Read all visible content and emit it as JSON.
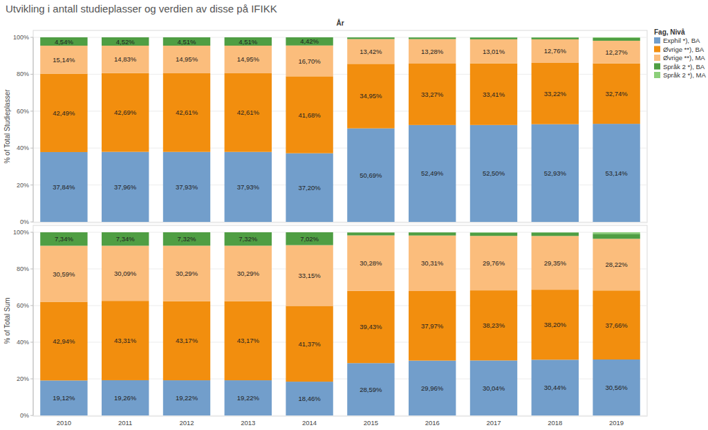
{
  "chart_data": {
    "type": "bar",
    "title": "Utvikling i antall studieplasser og verdien av disse på IFIKK",
    "xlabel": "År",
    "stacked": true,
    "data_labels": true,
    "grid": true,
    "legend": "right",
    "legend_title": "Fag, Nivå",
    "categories": [
      "2010",
      "2011",
      "2012",
      "2013",
      "2014",
      "2015",
      "2016",
      "2017",
      "2018",
      "2019"
    ],
    "series": [
      {
        "name": "Exphil *), BA",
        "color": "#729ecb"
      },
      {
        "name": "Øvrige **), BA",
        "color": "#f28e0e"
      },
      {
        "name": "Øvrige **), MA",
        "color": "#fbbd7c"
      },
      {
        "name": "Språk 2 *), BA",
        "color": "#4f9e43"
      },
      {
        "name": "Språk 2 *), MA",
        "color": "#8ccf7a"
      }
    ],
    "panels": [
      {
        "ylabel": "% of Total Studieplasser",
        "ylim": [
          0,
          100
        ],
        "yticks": [
          {
            "value": 0,
            "label": "0%"
          },
          {
            "value": 20,
            "label": "20%"
          },
          {
            "value": 40,
            "label": "40%"
          },
          {
            "value": 60,
            "label": "60%"
          },
          {
            "value": 80,
            "label": "80%"
          },
          {
            "value": 100,
            "label": "100%"
          }
        ],
        "values": [
          [
            37.84,
            37.96,
            37.93,
            37.93,
            37.2,
            50.69,
            52.49,
            52.5,
            52.93,
            53.14
          ],
          [
            42.49,
            42.69,
            42.61,
            42.61,
            41.68,
            34.95,
            33.27,
            33.41,
            33.22,
            32.74
          ],
          [
            15.14,
            14.83,
            14.95,
            14.95,
            16.7,
            13.42,
            13.28,
            13.01,
            12.76,
            12.27
          ],
          [
            4.54,
            4.52,
            4.51,
            4.51,
            4.42,
            0.9,
            0.9,
            1.0,
            1.0,
            1.49
          ],
          [
            null,
            null,
            null,
            null,
            null,
            0.04,
            0.06,
            0.08,
            0.09,
            0.36
          ]
        ],
        "value_labels": [
          [
            "37,84%",
            "37,96%",
            "37,93%",
            "37,93%",
            "37,20%",
            "50,69%",
            "52,49%",
            "52,50%",
            "52,93%",
            "53,14%"
          ],
          [
            "42,49%",
            "42,69%",
            "42,61%",
            "42,61%",
            "41,68%",
            "34,95%",
            "33,27%",
            "33,41%",
            "33,22%",
            "32,74%"
          ],
          [
            "15,14%",
            "14,83%",
            "14,95%",
            "14,95%",
            "16,70%",
            "13,42%",
            "13,28%",
            "13,01%",
            "12,76%",
            "12,27%"
          ],
          [
            "4,54%",
            "4,52%",
            "4,51%",
            "4,51%",
            "4,42%",
            null,
            null,
            null,
            null,
            null
          ],
          [
            null,
            null,
            null,
            null,
            null,
            null,
            null,
            null,
            null,
            null
          ]
        ]
      },
      {
        "ylabel": "% of Total Sum",
        "ylim": [
          0,
          100
        ],
        "yticks": [
          {
            "value": 0,
            "label": "0%"
          },
          {
            "value": 20,
            "label": "20%"
          },
          {
            "value": 40,
            "label": "40%"
          },
          {
            "value": 60,
            "label": "60%"
          },
          {
            "value": 80,
            "label": "80%"
          },
          {
            "value": 100,
            "label": "100%"
          }
        ],
        "values": [
          [
            19.12,
            19.26,
            19.22,
            19.22,
            18.46,
            28.59,
            29.96,
            30.04,
            30.44,
            30.56
          ],
          [
            42.94,
            43.31,
            43.17,
            43.17,
            41.37,
            39.43,
            37.97,
            38.23,
            38.2,
            37.66
          ],
          [
            30.59,
            30.09,
            30.29,
            30.29,
            33.15,
            30.28,
            30.31,
            29.76,
            29.35,
            28.22
          ],
          [
            7.34,
            7.34,
            7.32,
            7.32,
            7.02,
            1.6,
            1.7,
            1.8,
            1.9,
            2.7
          ],
          [
            null,
            null,
            null,
            null,
            null,
            0.1,
            0.06,
            0.17,
            0.11,
            0.86
          ]
        ],
        "value_labels": [
          [
            "19,12%",
            "19,26%",
            "19,22%",
            "19,22%",
            "18,46%",
            "28,59%",
            "29,96%",
            "30,04%",
            "30,44%",
            "30,56%"
          ],
          [
            "42,94%",
            "43,31%",
            "43,17%",
            "43,17%",
            "41,37%",
            "39,43%",
            "37,97%",
            "38,23%",
            "38,20%",
            "37,66%"
          ],
          [
            "30,59%",
            "30,09%",
            "30,29%",
            "30,29%",
            "33,15%",
            "30,28%",
            "30,31%",
            "29,76%",
            "29,35%",
            "28,22%"
          ],
          [
            "7,34%",
            "7,34%",
            "7,32%",
            "7,32%",
            "7,02%",
            null,
            null,
            null,
            null,
            null
          ],
          [
            null,
            null,
            null,
            null,
            null,
            null,
            null,
            null,
            null,
            null
          ]
        ]
      }
    ]
  }
}
